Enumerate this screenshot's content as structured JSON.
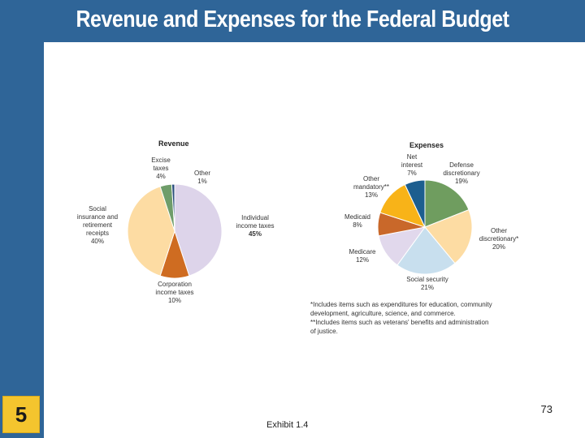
{
  "slide": {
    "title": "Revenue and Expenses for the Federal Budget",
    "slide_number": "5",
    "page_number": "73",
    "caption": "Exhibit 1.4"
  },
  "colors": {
    "background": "#2f6598",
    "panel": "#ffffff",
    "badge": "#f4c52e"
  },
  "chart_data": [
    {
      "type": "pie",
      "title": "Revenue",
      "slices": [
        {
          "label": [
            "Individual",
            "income taxes"
          ],
          "pct": "45%",
          "value": 45,
          "color": "#ddd4ea"
        },
        {
          "label": [
            "Corporation",
            "income taxes"
          ],
          "pct": "10%",
          "value": 10,
          "color": "#cf6c21"
        },
        {
          "label": [
            "Social",
            "insurance and",
            "retirement",
            "receipts"
          ],
          "pct": "40%",
          "value": 40,
          "color": "#fddca3"
        },
        {
          "label": [
            "Excise",
            "taxes"
          ],
          "pct": "4%",
          "value": 4,
          "color": "#6f9d6a"
        },
        {
          "label": [
            "Other"
          ],
          "pct": "1%",
          "value": 1,
          "color": "#2a4e7c"
        }
      ]
    },
    {
      "type": "pie",
      "title": "Expenses",
      "slices": [
        {
          "label": [
            "Defense",
            "discretionary"
          ],
          "pct": "19%",
          "value": 19,
          "color": "#6f9d5f"
        },
        {
          "label": [
            "Other",
            "discretionary*"
          ],
          "pct": "20%",
          "value": 20,
          "color": "#fddca3"
        },
        {
          "label": [
            "Social security"
          ],
          "pct": "21%",
          "value": 21,
          "color": "#c8dfee"
        },
        {
          "label": [
            "Medicare"
          ],
          "pct": "12%",
          "value": 12,
          "color": "#e1d8ec"
        },
        {
          "label": [
            "Medicaid"
          ],
          "pct": "8%",
          "value": 8,
          "color": "#c9682a"
        },
        {
          "label": [
            "Other",
            "mandatory**"
          ],
          "pct": "13%",
          "value": 13,
          "color": "#f8b318"
        },
        {
          "label": [
            "Net",
            "interest"
          ],
          "pct": "7%",
          "value": 7,
          "color": "#1d5e8f"
        }
      ],
      "footnotes": [
        "*Includes items such as expenditures for education, community",
        "development, agriculture, science, and commerce.",
        "**Includes items such as veterans' benefits and administration",
        "of justice."
      ]
    }
  ]
}
